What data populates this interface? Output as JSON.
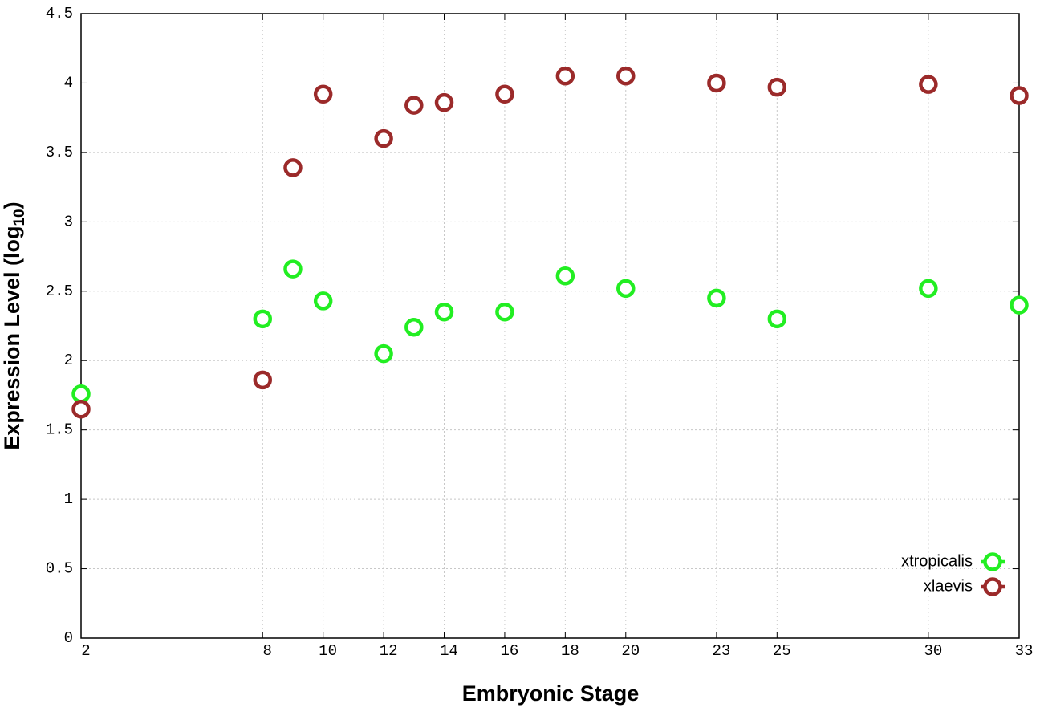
{
  "chart_data": {
    "type": "line",
    "x_label": "Embryonic Stage",
    "y_label": "Expression Level (log",
    "y_label_subscript": "10",
    "y_label_close": ")",
    "x": [
      2,
      8,
      9,
      10,
      12,
      13,
      14,
      16,
      18,
      20,
      23,
      25,
      30,
      33
    ],
    "series": [
      {
        "name": "xtropicalis",
        "color": "#22ee22",
        "values": [
          1.76,
          2.3,
          2.66,
          2.43,
          2.05,
          2.24,
          2.35,
          2.35,
          2.61,
          2.52,
          2.45,
          2.3,
          2.52,
          2.4
        ]
      },
      {
        "name": "xlaevis",
        "color": "#9b2a2a",
        "values": [
          1.65,
          1.86,
          3.39,
          3.92,
          3.6,
          3.84,
          3.86,
          3.92,
          4.05,
          4.05,
          4.0,
          3.97,
          3.99,
          3.91
        ]
      }
    ],
    "xlim": [
      2,
      33
    ],
    "xticks": [
      2,
      8,
      10,
      12,
      14,
      16,
      18,
      20,
      23,
      25,
      30,
      33
    ],
    "ylim": [
      0,
      4.5
    ],
    "yticks": [
      0,
      0.5,
      1,
      1.5,
      2,
      2.5,
      3,
      3.5,
      4,
      4.5
    ],
    "grid": true,
    "legend": "lower right"
  }
}
